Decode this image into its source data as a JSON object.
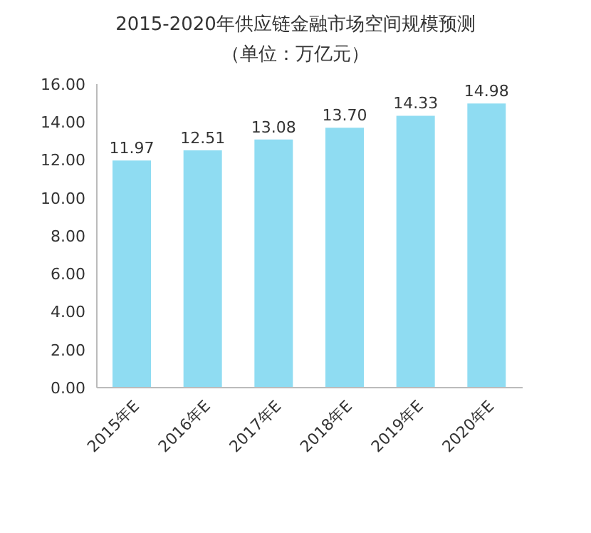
{
  "chart_data": {
    "type": "bar",
    "title": "2015-2020年供应链金融市场空间规模预测",
    "subtitle": "（单位：万亿元）",
    "categories": [
      "2015年E",
      "2016年E",
      "2017年E",
      "2018年E",
      "2019年E",
      "2020年E"
    ],
    "values": [
      11.97,
      12.51,
      13.08,
      13.7,
      14.33,
      14.98
    ],
    "color": "#8fdcf2",
    "ylim": [
      0,
      16
    ],
    "yticks": [
      {
        "value": 0,
        "label": "0.00"
      },
      {
        "value": 2,
        "label": "2.00"
      },
      {
        "value": 4,
        "label": "4.00"
      },
      {
        "value": 6,
        "label": "6.00"
      },
      {
        "value": 8,
        "label": "8.00"
      },
      {
        "value": 10,
        "label": "10.00"
      },
      {
        "value": 12,
        "label": "12.00"
      },
      {
        "value": 14,
        "label": "14.00"
      },
      {
        "value": 16,
        "label": "16.00"
      }
    ],
    "value_labels": [
      "11.97",
      "12.51",
      "13.08",
      "13.70",
      "14.33",
      "14.98"
    ],
    "grid": false,
    "legend": false
  }
}
